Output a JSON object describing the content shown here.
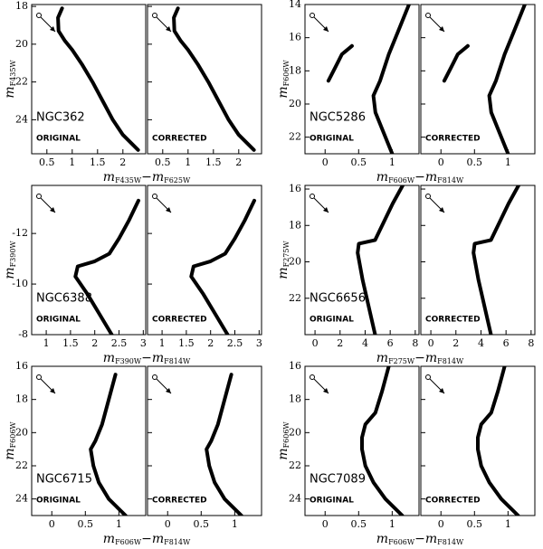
{
  "chart_data": [
    {
      "type": "line",
      "label": "NGC362",
      "panels": [
        "ORIGINAL",
        "CORRECTED"
      ],
      "xlabel": [
        "m",
        "F435W",
        "−m",
        "F625W"
      ],
      "ylabel": [
        "m",
        "F435W"
      ],
      "xlim": [
        0.2,
        2.45
      ],
      "ylim": [
        17.9,
        25.8
      ],
      "xticks": [
        0.5,
        1,
        1.5,
        2
      ],
      "yticks": [
        18,
        20,
        22,
        24
      ],
      "x": [
        0.8,
        0.72,
        0.73,
        0.85,
        1.0,
        1.2,
        1.4,
        1.6,
        1.8,
        2.0,
        2.3
      ],
      "values": [
        18.1,
        18.6,
        19.3,
        19.8,
        20.3,
        21.1,
        22,
        23,
        24,
        24.8,
        25.6
      ]
    },
    {
      "type": "line",
      "label": "NGC5286",
      "panels": [
        "ORIGINAL",
        "CORRECTED"
      ],
      "xlabel": [
        "m",
        "F606W",
        "−m",
        "F814W"
      ],
      "ylabel": [
        "m",
        "F606W"
      ],
      "xlim": [
        -0.3,
        1.4
      ],
      "ylim": [
        14,
        23
      ],
      "xticks": [
        0,
        0.5,
        1
      ],
      "yticks": [
        14,
        16,
        18,
        20,
        22
      ],
      "x": [
        1.25,
        1.1,
        0.95,
        0.82,
        0.72,
        0.75,
        0.85,
        0.95,
        1.0,
        null,
        0.4,
        0.25,
        0.15,
        0.05
      ],
      "values": [
        14,
        15.5,
        17,
        18.6,
        19.5,
        20.5,
        21.5,
        22.5,
        23,
        null,
        16.5,
        17,
        17.8,
        18.6
      ]
    },
    {
      "type": "line",
      "label": "NGC6388",
      "panels": [
        "ORIGINAL",
        "CORRECTED"
      ],
      "xlabel": [
        "m",
        "F390W",
        "−m",
        "F814W"
      ],
      "ylabel": [
        "m",
        "F390W"
      ],
      "xlim": [
        0.7,
        3.05
      ],
      "ylim": [
        -13.9,
        -8
      ],
      "xticks": [
        1,
        1.5,
        2,
        2.5,
        3
      ],
      "yticks": [
        -12,
        -10,
        -8
      ],
      "x": [
        2.35,
        2.1,
        1.85,
        1.6,
        1.65,
        2.0,
        2.3,
        2.5,
        2.7,
        2.9
      ],
      "values": [
        -8,
        -8.8,
        -9.6,
        -10.3,
        -10.7,
        -10.9,
        -11.2,
        -11.8,
        -12.5,
        -13.3
      ]
    },
    {
      "type": "line",
      "label": "NGC6656",
      "panels": [
        "ORIGINAL",
        "CORRECTED"
      ],
      "xlabel": [
        "m",
        "F275W",
        "−m",
        "F814W"
      ],
      "ylabel": [
        "m",
        "F275W"
      ],
      "xlim": [
        -0.8,
        8.3
      ],
      "ylim": [
        15.8,
        24
      ],
      "xticks": [
        0,
        2,
        4,
        6,
        8
      ],
      "yticks": [
        16,
        18,
        20,
        22
      ],
      "x": [
        4.8,
        4.3,
        3.8,
        3.4,
        3.5,
        4.8,
        5.5,
        6.2,
        7
      ],
      "values": [
        24,
        22.5,
        21,
        19.5,
        19,
        18.8,
        17.8,
        16.8,
        15.8
      ]
    },
    {
      "type": "line",
      "label": "NGC6715",
      "panels": [
        "ORIGINAL",
        "CORRECTED"
      ],
      "xlabel": [
        "m",
        "F606W",
        "−m",
        "F814W"
      ],
      "ylabel": [
        "m",
        "F606W"
      ],
      "xlim": [
        -0.3,
        1.4
      ],
      "ylim": [
        16,
        25
      ],
      "xticks": [
        0,
        0.5,
        1
      ],
      "yticks": [
        16,
        18,
        20,
        22,
        24
      ],
      "x": [
        1.1,
        0.85,
        0.7,
        0.62,
        0.58,
        0.65,
        0.75,
        0.85,
        0.95
      ],
      "values": [
        25,
        24,
        23,
        22,
        21,
        20.5,
        19.5,
        18,
        16.5
      ]
    },
    {
      "type": "line",
      "label": "NGC7089",
      "panels": [
        "ORIGINAL",
        "CORRECTED"
      ],
      "xlabel": [
        "m",
        "F606W",
        "−m",
        "F814W"
      ],
      "ylabel": [
        "m",
        "F606W"
      ],
      "xlim": [
        -0.3,
        1.4
      ],
      "ylim": [
        16,
        25
      ],
      "xticks": [
        0,
        0.5,
        1
      ],
      "yticks": [
        16,
        18,
        20,
        22,
        24
      ],
      "x": [
        1.15,
        0.9,
        0.72,
        0.6,
        0.55,
        0.55,
        0.6,
        0.75,
        0.85,
        0.95
      ],
      "values": [
        25,
        24,
        23,
        22,
        21,
        20.3,
        19.5,
        18.8,
        17.5,
        16
      ]
    }
  ]
}
